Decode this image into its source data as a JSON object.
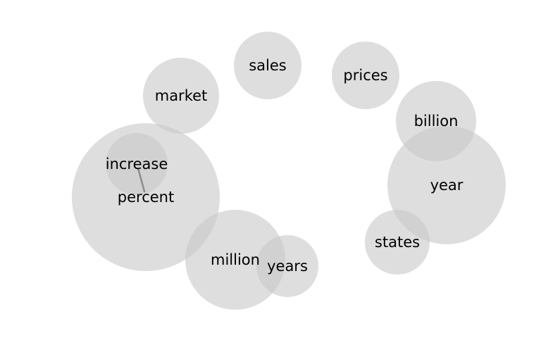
{
  "diagram": {
    "type": "word-bubble-chart",
    "bubble_color": "#c8c8c8",
    "link_color": "#8c8c8c",
    "text_color": "#000000",
    "background": "#ffffff",
    "words": [
      {
        "id": "percent",
        "text": "percent"
      },
      {
        "id": "increase",
        "text": "increase"
      },
      {
        "id": "market",
        "text": "market"
      },
      {
        "id": "sales",
        "text": "sales"
      },
      {
        "id": "prices",
        "text": "prices"
      },
      {
        "id": "billion",
        "text": "billion"
      },
      {
        "id": "year",
        "text": "year"
      },
      {
        "id": "states",
        "text": "states"
      },
      {
        "id": "million",
        "text": "million"
      },
      {
        "id": "years",
        "text": "years"
      }
    ],
    "links": [
      {
        "from": "increase",
        "to": "percent"
      }
    ]
  }
}
